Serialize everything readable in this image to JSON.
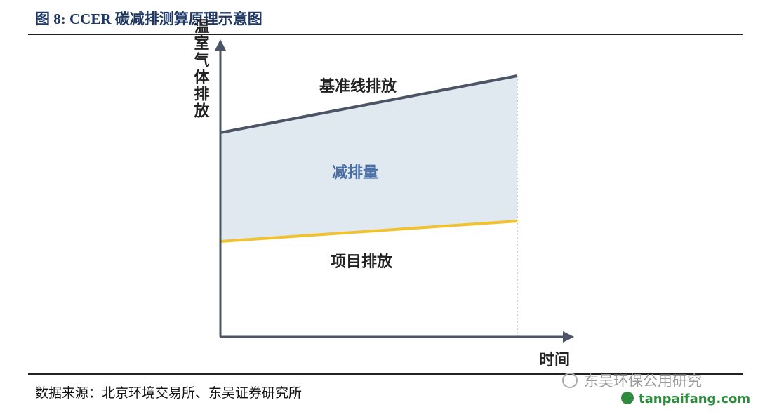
{
  "header": {
    "title": "图 8:  CCER 碳减排测算原理示意图"
  },
  "diagram": {
    "y_axis_label": "温室气体排放",
    "x_axis_label": "时间",
    "baseline_label": "基准线排放",
    "reduction_label": "减排量",
    "project_label": "项目排放"
  },
  "footer": {
    "source": "数据来源：北京环境交易所、东吴证券研究所",
    "watermark": "东吴环保公用研究",
    "site": "tanpaifang.com"
  }
}
